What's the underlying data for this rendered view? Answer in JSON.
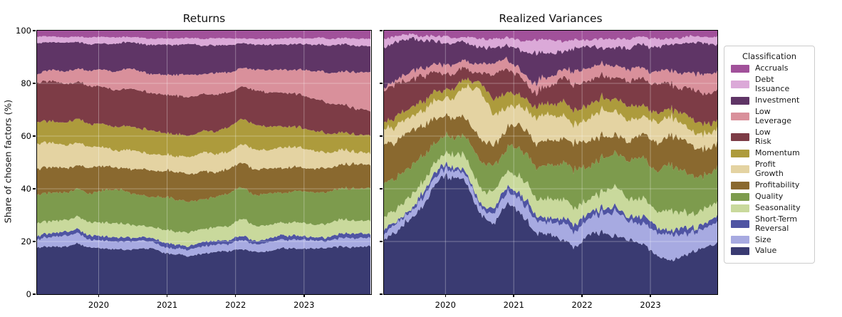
{
  "figure": {
    "ylabel": "Share of chosen factors (%)",
    "background": "#ffffff",
    "grid_color": "rgba(255,255,255,0.32)"
  },
  "legend": {
    "title": "Classification",
    "position": "right"
  },
  "classifications": [
    {
      "label": "Accruals",
      "lines": [
        "Accruals"
      ],
      "color": "#a1519a"
    },
    {
      "label": "Debt Issuance",
      "lines": [
        "Debt",
        "Issuance"
      ],
      "color": "#dba9d8"
    },
    {
      "label": "Investment",
      "lines": [
        "Investment"
      ],
      "color": "#5f3566"
    },
    {
      "label": "Low Leverage",
      "lines": [
        "Low",
        "Leverage"
      ],
      "color": "#d9909b"
    },
    {
      "label": "Low Risk",
      "lines": [
        "Low",
        "Risk"
      ],
      "color": "#7d3c46"
    },
    {
      "label": "Momentum",
      "lines": [
        "Momentum"
      ],
      "color": "#ad9b3c"
    },
    {
      "label": "Profit Growth",
      "lines": [
        "Profit",
        "Growth"
      ],
      "color": "#e4d3a2"
    },
    {
      "label": "Profitability",
      "lines": [
        "Profitability"
      ],
      "color": "#8a692f"
    },
    {
      "label": "Quality",
      "lines": [
        "Quality"
      ],
      "color": "#7d9b4d"
    },
    {
      "label": "Seasonality",
      "lines": [
        "Seasonality"
      ],
      "color": "#c9d99c"
    },
    {
      "label": "Short-Term Reversal",
      "lines": [
        "Short-Term",
        "Reversal"
      ],
      "color": "#4f54a3"
    },
    {
      "label": "Size",
      "lines": [
        "Size"
      ],
      "color": "#a7aae1"
    },
    {
      "label": "Value",
      "lines": [
        "Value"
      ],
      "color": "#3a3b72"
    }
  ],
  "chart_data": [
    {
      "type": "area",
      "title": "Returns",
      "stack_order": "bottom-to-top",
      "xlim": [
        2019.1,
        2023.98
      ],
      "ylim": [
        0,
        100
      ],
      "x_ticks": [
        2020,
        2021,
        2022,
        2023
      ],
      "x_tick_labels": [
        "2020",
        "2021",
        "2022",
        "2023"
      ],
      "y_ticks": [
        0,
        20,
        40,
        60,
        80,
        100
      ],
      "show_y_tick_labels": true,
      "grid": true,
      "jitter": 1.0,
      "x_keypoints": [
        2019.1,
        2019.3,
        2019.5,
        2019.7,
        2019.9,
        2020.1,
        2020.3,
        2020.5,
        2020.7,
        2020.9,
        2021.1,
        2021.3,
        2021.5,
        2021.7,
        2021.9,
        2022.1,
        2022.3,
        2022.5,
        2022.7,
        2022.9,
        2023.1,
        2023.3,
        2023.5,
        2023.7,
        2023.98
      ],
      "series": [
        {
          "name": "Value",
          "values": [
            17.5,
            18,
            18.5,
            19,
            18.5,
            18,
            17.5,
            17,
            17.5,
            17,
            15.5,
            15,
            16,
            16.5,
            17,
            17.5,
            17,
            17.5,
            18,
            17.5,
            18,
            18,
            18.5,
            18,
            18.5
          ]
        },
        {
          "name": "Size",
          "values": [
            3,
            3.5,
            4,
            4,
            3,
            3,
            3,
            3,
            3,
            2.5,
            2.5,
            2.5,
            3,
            3,
            2.5,
            3.5,
            3,
            3.5,
            3,
            3.5,
            3,
            2.5,
            3,
            3.5,
            3.5
          ]
        },
        {
          "name": "Short-Term Reversal",
          "values": [
            1.5,
            1.5,
            1.5,
            1.5,
            2,
            1.5,
            1.5,
            1.5,
            1.5,
            1.5,
            1.5,
            1,
            1.5,
            1.5,
            1.5,
            1.5,
            1.5,
            1.5,
            1.5,
            1.5,
            1.5,
            1.5,
            1.5,
            1.5,
            1.5
          ]
        },
        {
          "name": "Seasonality",
          "values": [
            5,
            4.5,
            4.5,
            5,
            5,
            5.5,
            5.5,
            5,
            4.5,
            4.5,
            5,
            5.5,
            5.5,
            5,
            5.5,
            6.5,
            6,
            5.5,
            5,
            5.5,
            5,
            5.5,
            5.5,
            5,
            5
          ]
        },
        {
          "name": "Quality",
          "values": [
            10.5,
            10.5,
            10.5,
            11,
            11.5,
            13,
            13.5,
            12,
            11.5,
            12,
            12.5,
            12,
            11.5,
            12,
            13,
            12,
            12.5,
            12,
            11.5,
            12,
            12.5,
            12,
            12,
            12.5,
            12
          ]
        },
        {
          "name": "Profitability",
          "values": [
            9.5,
            9.5,
            9.5,
            9,
            10,
            9,
            8,
            9.5,
            10.5,
            10,
            10.5,
            11,
            10.5,
            10,
            9.5,
            9.5,
            10,
            9.5,
            10,
            9.5,
            9,
            9.5,
            9,
            9,
            9
          ]
        },
        {
          "name": "Profit Growth",
          "values": [
            10,
            9.5,
            9,
            8.5,
            8,
            7,
            6.5,
            7,
            6,
            6.5,
            6,
            6.5,
            7,
            7.5,
            7,
            7.5,
            8,
            7.5,
            8,
            7.5,
            7,
            6,
            5.5,
            5,
            4.5
          ]
        },
        {
          "name": "Momentum",
          "values": [
            8,
            8,
            8.5,
            9,
            8.5,
            9,
            9.5,
            9,
            9.5,
            9,
            8.5,
            8,
            8.5,
            9,
            9.5,
            10,
            9.5,
            9,
            8.5,
            8.5,
            8,
            7.5,
            7,
            7,
            6.5
          ]
        },
        {
          "name": "Low Risk",
          "values": [
            15,
            15,
            14.5,
            14,
            14.5,
            14,
            14,
            14.5,
            14.5,
            15,
            15.5,
            15,
            14.5,
            14,
            13.5,
            13,
            13.5,
            14,
            13.5,
            13,
            12.5,
            12,
            11,
            10,
            9.5
          ]
        },
        {
          "name": "Low Leverage",
          "values": [
            3.5,
            4,
            4.5,
            5,
            6,
            6.5,
            7,
            7.5,
            7,
            7.5,
            8,
            8.5,
            8,
            8.5,
            8,
            7.5,
            8,
            8.5,
            9,
            9.5,
            10,
            11.5,
            12.5,
            13.5,
            14.5
          ]
        },
        {
          "name": "Investment",
          "values": [
            11.5,
            11,
            11,
            10.5,
            10,
            10,
            10.5,
            10.5,
            11,
            11,
            11.5,
            11.5,
            11,
            10.5,
            10.5,
            10,
            9.5,
            10,
            10,
            10.5,
            10.5,
            10.5,
            10.5,
            10,
            9.5
          ]
        },
        {
          "name": "Debt Issuance",
          "values": [
            2.5,
            2.5,
            2,
            2,
            2.5,
            2.5,
            2,
            2,
            2.5,
            2.5,
            2.5,
            2.5,
            2.5,
            2.5,
            2.5,
            2,
            2.5,
            2.5,
            2.5,
            2.5,
            2.5,
            2.5,
            2.5,
            2.5,
            2.5
          ]
        },
        {
          "name": "Accruals",
          "values": [
            2.5,
            2.5,
            2.5,
            2.5,
            2.5,
            2.5,
            2.5,
            2.5,
            3,
            3,
            3,
            3,
            3,
            3,
            3,
            3,
            3,
            3,
            3,
            3,
            3,
            3,
            3,
            3,
            3
          ]
        }
      ]
    },
    {
      "type": "area",
      "title": "Realized Variances",
      "stack_order": "bottom-to-top",
      "xlim": [
        2019.1,
        2023.98
      ],
      "ylim": [
        0,
        100
      ],
      "x_ticks": [
        2020,
        2021,
        2022,
        2023
      ],
      "x_tick_labels": [
        "2020",
        "2021",
        "2022",
        "2023"
      ],
      "y_ticks": [
        0,
        20,
        40,
        60,
        80,
        100
      ],
      "show_y_tick_labels": false,
      "grid": true,
      "jitter": 2.4,
      "x_keypoints": [
        2019.1,
        2019.3,
        2019.5,
        2019.7,
        2019.9,
        2020.1,
        2020.3,
        2020.5,
        2020.7,
        2020.9,
        2021.1,
        2021.3,
        2021.5,
        2021.7,
        2021.9,
        2022.1,
        2022.3,
        2022.5,
        2022.7,
        2022.9,
        2023.1,
        2023.3,
        2023.5,
        2023.7,
        2023.98
      ],
      "series": [
        {
          "name": "Value",
          "values": [
            21,
            24,
            28,
            35,
            43,
            45,
            44,
            30,
            27,
            35,
            30,
            26,
            25,
            22,
            20,
            24,
            26,
            24,
            22,
            20,
            17,
            14,
            16,
            19,
            22
          ]
        },
        {
          "name": "Size",
          "values": [
            2.5,
            2.5,
            3,
            3,
            3,
            3,
            3,
            3,
            4,
            4,
            5,
            6,
            5,
            6,
            7,
            7,
            8,
            9,
            8,
            9,
            9,
            10,
            9,
            8,
            9
          ]
        },
        {
          "name": "Short-Term Reversal",
          "values": [
            1,
            1,
            1.5,
            1.5,
            2,
            1.5,
            1.5,
            1.5,
            2,
            2,
            2,
            2.5,
            2,
            2,
            2.5,
            2.5,
            3,
            2.5,
            2,
            2.5,
            2,
            2,
            2.5,
            2,
            2
          ]
        },
        {
          "name": "Seasonality",
          "values": [
            5.5,
            5,
            5,
            4.5,
            4,
            4.5,
            5,
            5,
            6,
            5,
            6,
            7,
            8,
            7,
            7,
            6,
            7,
            8,
            7,
            8,
            7,
            8,
            7,
            6,
            6
          ]
        },
        {
          "name": "Quality",
          "values": [
            13,
            12,
            11,
            9,
            7,
            7,
            8,
            10,
            11,
            9,
            11,
            13,
            14,
            15,
            16,
            14,
            13,
            14,
            15,
            16,
            17,
            18,
            16,
            14,
            13
          ]
        },
        {
          "name": "Profitability",
          "values": [
            14,
            14,
            13,
            11,
            9,
            8,
            8,
            9,
            8,
            8,
            9,
            9,
            10,
            11,
            10,
            10,
            9,
            8,
            9,
            10,
            11,
            12,
            12,
            11,
            10
          ]
        },
        {
          "name": "Profit Growth",
          "values": [
            5,
            6,
            6,
            6,
            6,
            7,
            12,
            20,
            12,
            8,
            8,
            10,
            10,
            9,
            8,
            9,
            10,
            9,
            8,
            7,
            8,
            7,
            6,
            6,
            5
          ]
        },
        {
          "name": "Momentum",
          "values": [
            2.5,
            3,
            3,
            3,
            3,
            3.5,
            3,
            3,
            6,
            6,
            5,
            4,
            5,
            6,
            6,
            5,
            4,
            5,
            5,
            4,
            4,
            4,
            5,
            5,
            4
          ]
        },
        {
          "name": "Low Risk",
          "values": [
            13,
            12,
            11,
            9,
            7,
            6,
            4,
            3.5,
            9,
            9,
            8,
            6,
            8,
            10,
            10,
            10,
            9,
            9,
            11,
            10,
            11,
            10,
            11,
            12,
            12
          ]
        },
        {
          "name": "Low Leverage",
          "values": [
            1.5,
            2,
            2.5,
            3,
            3,
            3.5,
            3,
            3.5,
            4,
            4,
            3,
            3,
            4,
            4,
            5,
            5,
            5,
            5,
            6,
            5,
            6,
            6,
            6,
            7,
            8
          ]
        },
        {
          "name": "Investment",
          "values": [
            15.5,
            14,
            12,
            11,
            9,
            8,
            7,
            7,
            7,
            6,
            8,
            13,
            9,
            8,
            9,
            8,
            7,
            8,
            9,
            10,
            10,
            11,
            11,
            12,
            11
          ]
        },
        {
          "name": "Debt Issuance",
          "values": [
            2.5,
            2,
            2,
            2,
            2,
            2,
            2.5,
            3,
            3,
            3,
            4,
            6,
            5,
            4,
            3.5,
            3,
            3,
            3,
            3,
            3,
            3,
            3,
            3,
            3,
            3
          ]
        },
        {
          "name": "Accruals",
          "values": [
            2.5,
            2.5,
            2,
            2,
            2,
            2.5,
            2.5,
            2.5,
            3,
            3,
            4,
            4.5,
            4,
            4,
            4,
            3.5,
            3,
            3,
            3,
            3,
            3,
            3,
            3,
            3,
            3
          ]
        }
      ]
    }
  ]
}
